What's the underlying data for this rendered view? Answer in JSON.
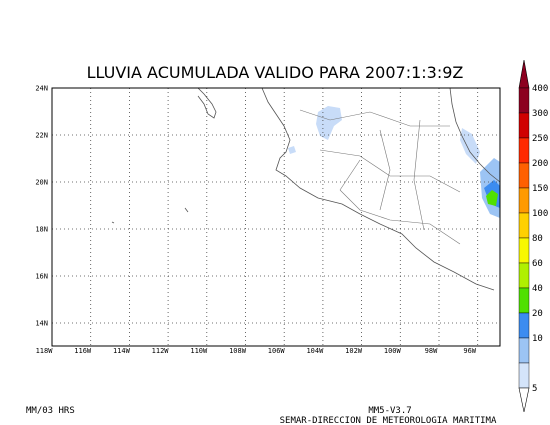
{
  "title": "LLUVIA ACUMULADA VALIDO PARA 2007:1:3:9Z",
  "map": {
    "lat_labels": [
      "24N",
      "22N",
      "20N",
      "18N",
      "16N",
      "14N"
    ],
    "lon_labels": [
      "118W",
      "116W",
      "114W",
      "112W",
      "110W",
      "108W",
      "106W",
      "104W",
      "102W",
      "100W",
      "98W",
      "96W"
    ]
  },
  "colorbar": {
    "labels": [
      "400",
      "300",
      "250",
      "200",
      "150",
      "100",
      "80",
      "60",
      "40",
      "20",
      "10",
      "5"
    ],
    "colors": [
      "#8c0020",
      "#d00000",
      "#ff2a00",
      "#ff6000",
      "#ff9a00",
      "#ffd000",
      "#f8f800",
      "#b0f000",
      "#50e000",
      "#3c8cf0",
      "#9cc4f4",
      "#d4e4fa"
    ]
  },
  "footer": {
    "left": "MM/03 HRS",
    "model": "MM5-V3.7",
    "credit": "SEMAR-DIRECCION DE METEOROLOGIA MARITIMA"
  }
}
